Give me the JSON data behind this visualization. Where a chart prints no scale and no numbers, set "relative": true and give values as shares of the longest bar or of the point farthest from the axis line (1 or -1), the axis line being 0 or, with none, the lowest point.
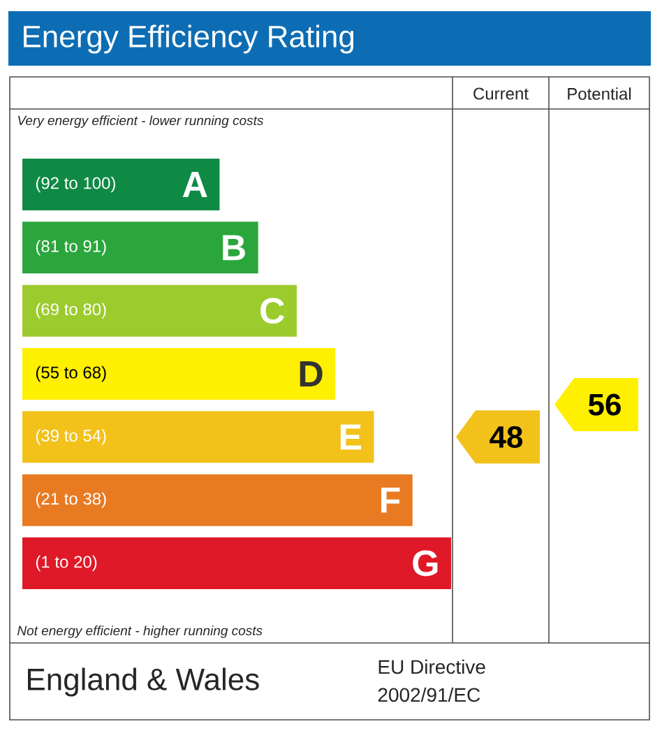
{
  "chart_data": {
    "type": "bar",
    "orientation": "horizontal",
    "relative": true,
    "title": "Energy Efficiency Rating",
    "categories": [
      "A",
      "B",
      "C",
      "D",
      "E",
      "F",
      "G"
    ],
    "values": [
      0.46,
      0.55,
      0.64,
      0.73,
      0.82,
      0.91,
      1.0
    ],
    "colors": [
      "#0f8a45",
      "#2aa63c",
      "#9ccb2e",
      "#ffef00",
      "#f2c21b",
      "#e87a22",
      "#df1927"
    ],
    "annotations": [
      "Very energy efficient - lower running costs",
      "Not energy efficient - higher running costs",
      "England & Wales",
      "EU Directive",
      "2002/91/EC",
      "Current",
      "Potential",
      "(92 to 100)",
      "(81 to 91)",
      "(69 to 80)",
      "(55 to 68)",
      "(39 to 54)",
      "(21 to 38)",
      "(1 to 20)",
      "48",
      "56"
    ]
  }
}
